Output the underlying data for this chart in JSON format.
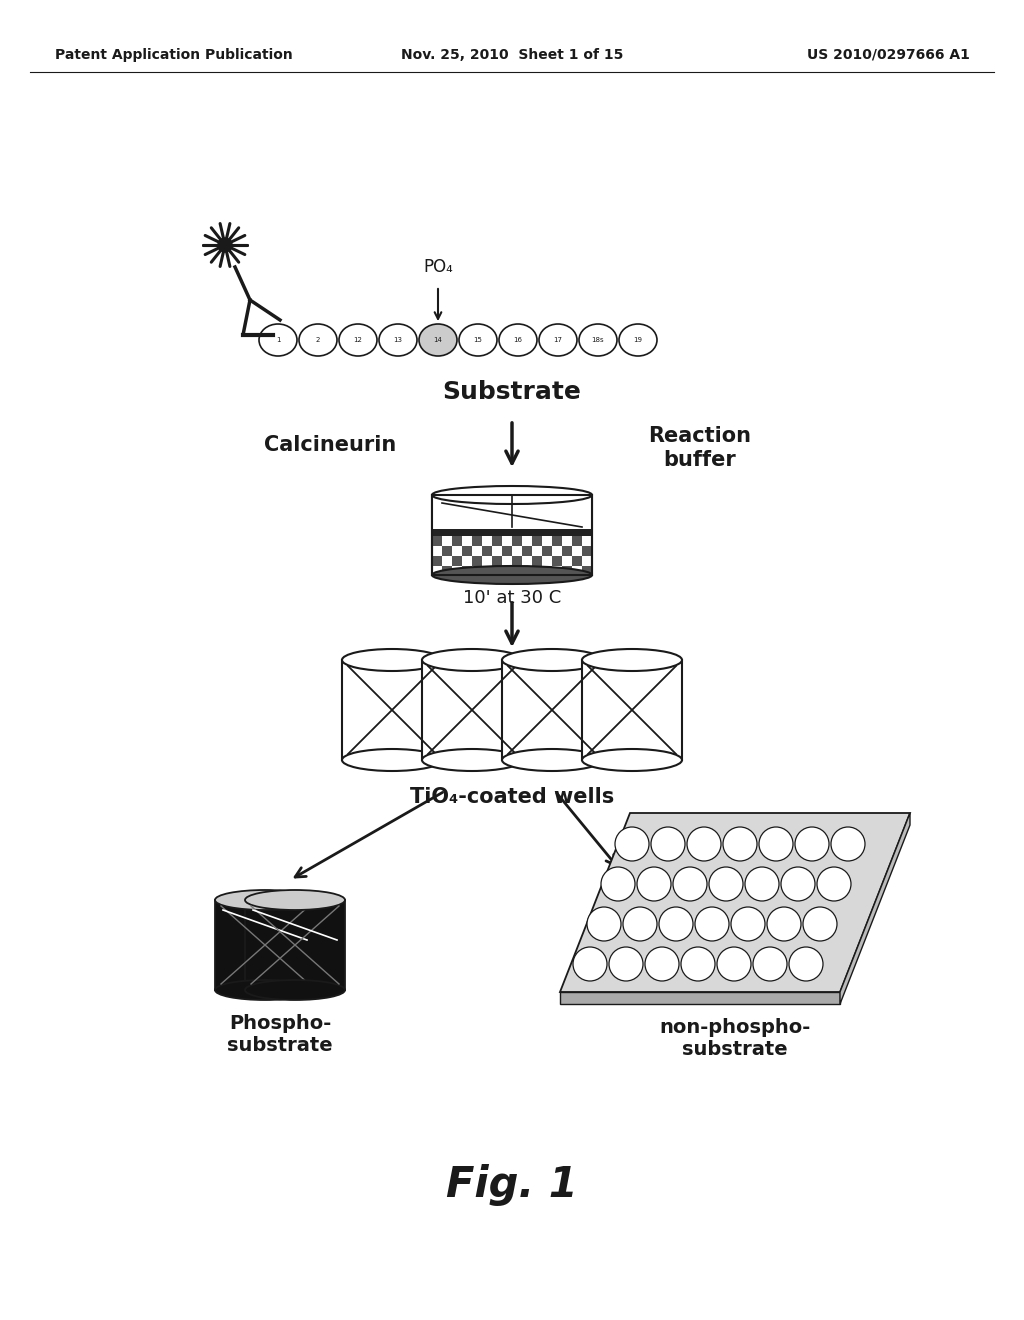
{
  "background_color": "#ffffff",
  "header_left": "Patent Application Publication",
  "header_center": "Nov. 25, 2010  Sheet 1 of 15",
  "header_right": "US 2010/0297666 A1",
  "header_fontsize": 10,
  "fig_label": "Fig. 1",
  "fig_label_fontsize": 30,
  "text_color": "#1a1a1a",
  "labels": {
    "substrate": "Substrate",
    "calcineurin": "Calcineurin",
    "reaction_buffer": "Reaction\nbuffer",
    "incubation": "10' at 30 C",
    "tio4_wells": "TiO₄-coated wells",
    "phospho_sub": "Phospho-\nsubstrate",
    "non_phospho_sub": "non-phospho-\nsubstrate",
    "po4": "PO₄"
  },
  "bead_labels": [
    "1",
    "2",
    "12",
    "13",
    "14",
    "15",
    "16",
    "17",
    "18s",
    "19"
  ]
}
